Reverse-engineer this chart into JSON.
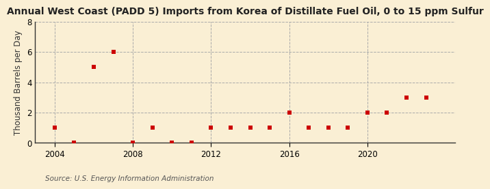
{
  "title": "Annual West Coast (PADD 5) Imports from Korea of Distillate Fuel Oil, 0 to 15 ppm Sulfur",
  "ylabel": "Thousand Barrels per Day",
  "source": "Source: U.S. Energy Information Administration",
  "years": [
    2004,
    2005,
    2006,
    2007,
    2008,
    2009,
    2010,
    2011,
    2012,
    2013,
    2014,
    2015,
    2016,
    2017,
    2018,
    2019,
    2020,
    2021,
    2022,
    2023
  ],
  "values": [
    1,
    0,
    5,
    6,
    0,
    1,
    0,
    0,
    1,
    1,
    1,
    1,
    2,
    1,
    1,
    1,
    2,
    2,
    3,
    3
  ],
  "marker_color": "#cc0000",
  "marker": "s",
  "marker_size": 5,
  "bg_color": "#faefd4",
  "grid_color": "#aaaaaa",
  "ylim": [
    0,
    8
  ],
  "yticks": [
    0,
    2,
    4,
    6,
    8
  ],
  "xticks": [
    2004,
    2008,
    2012,
    2016,
    2020
  ],
  "xlim": [
    2003.0,
    2024.5
  ],
  "title_fontsize": 10,
  "ylabel_fontsize": 8.5,
  "source_fontsize": 7.5,
  "tick_fontsize": 8.5
}
